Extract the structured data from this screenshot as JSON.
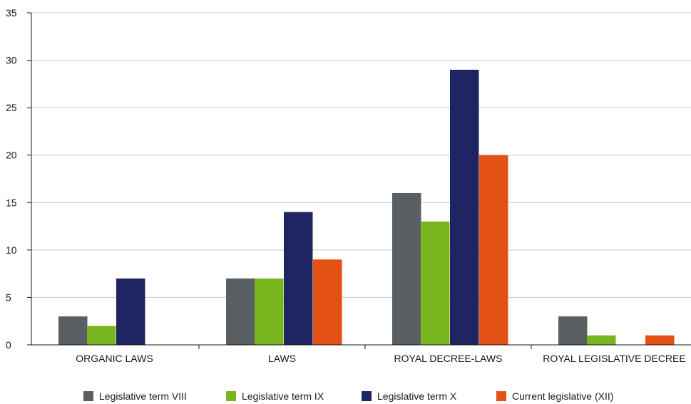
{
  "chart_data": {
    "type": "bar",
    "title": "",
    "xlabel": "",
    "ylabel": "",
    "ylim": [
      0,
      35
    ],
    "yticks": [
      0,
      5,
      10,
      15,
      20,
      25,
      30,
      35
    ],
    "grid": true,
    "legend_position": "bottom",
    "categories": [
      "ORGANIC LAWS",
      "LAWS",
      "ROYAL DECREE-LAWS",
      "ROYAL LEGISLATIVE DECREE"
    ],
    "category_labels_shown": [
      "ORGANIC LAWS",
      "LAWS",
      "ROYAL DECREE-LAWS",
      "ROYAL LEGISLATIVE DECREE"
    ],
    "series": [
      {
        "name": "Legislative term VIII",
        "color": "#5a5f63",
        "values": [
          3,
          7,
          16,
          3
        ]
      },
      {
        "name": "Legislative term IX",
        "color": "#78b51f",
        "values": [
          2,
          7,
          13,
          1
        ]
      },
      {
        "name": "Legislative term X",
        "color": "#1f2562",
        "values": [
          7,
          14,
          29,
          0
        ]
      },
      {
        "name": "Current legislative (XII)",
        "color": "#e45114",
        "values": [
          0,
          9,
          20,
          1
        ]
      }
    ]
  }
}
